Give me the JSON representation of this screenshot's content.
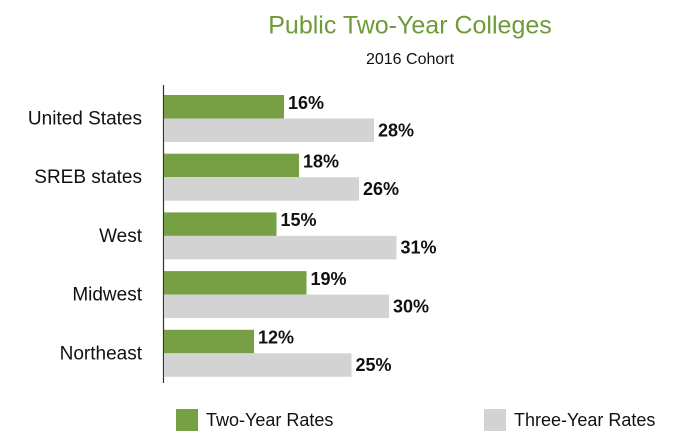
{
  "chart_data": {
    "type": "bar",
    "orientation": "horizontal",
    "title": "Public Two-Year Colleges",
    "subtitle": "2016 Cohort",
    "categories": [
      "United States",
      "SREB states",
      "West",
      "Midwest",
      "Northeast"
    ],
    "series": [
      {
        "name": "Two-Year Rates",
        "color": "#76a043",
        "values": [
          16,
          18,
          15,
          19,
          12
        ],
        "value_labels": [
          "16%",
          "18%",
          "15%",
          "19%",
          "12%"
        ]
      },
      {
        "name": "Three-Year Rates",
        "color": "#d3d3d3",
        "values": [
          28,
          26,
          31,
          30,
          25
        ],
        "value_labels": [
          "28%",
          "26%",
          "31%",
          "30%",
          "25%"
        ]
      }
    ],
    "legend": "bottom"
  }
}
